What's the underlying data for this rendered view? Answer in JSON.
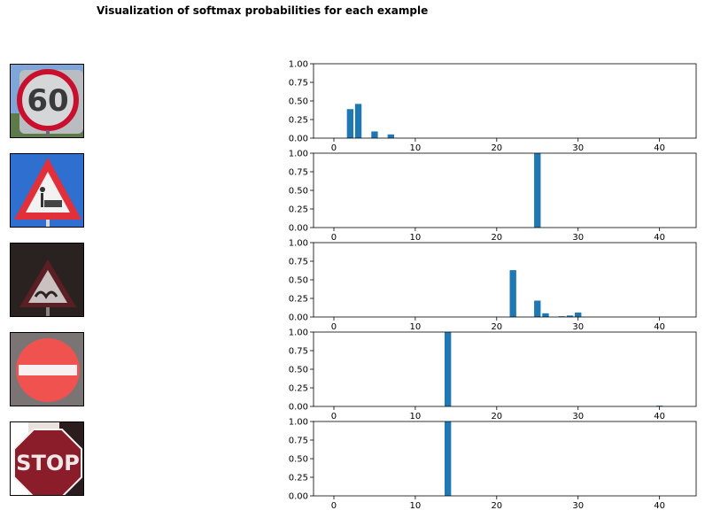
{
  "title": "Visualization of softmax probabilities for each example",
  "bar_color": "#1f77b4",
  "images": [
    {
      "sign": "60",
      "icon": "speed-limit-60-sign"
    },
    {
      "sign": "",
      "icon": "road-work-sign"
    },
    {
      "sign": "",
      "icon": "bumpy-road-sign"
    },
    {
      "sign": "",
      "icon": "no-entry-sign"
    },
    {
      "sign": "STOP",
      "icon": "stop-sign"
    }
  ],
  "chart_data": [
    {
      "type": "bar",
      "title": "",
      "xlabel": "",
      "ylabel": "",
      "x": [
        2,
        3,
        5,
        7
      ],
      "values": [
        0.39,
        0.46,
        0.09,
        0.05
      ],
      "xlim": [
        -2.5,
        44.5
      ],
      "ylim": [
        0,
        1
      ],
      "xticks": [
        "0",
        "10",
        "20",
        "30",
        "40"
      ],
      "yticks": [
        "0.00",
        "0.25",
        "0.50",
        "0.75",
        "1.00"
      ]
    },
    {
      "type": "bar",
      "title": "",
      "xlabel": "",
      "ylabel": "",
      "x": [
        25
      ],
      "values": [
        1.0
      ],
      "xlim": [
        -2.5,
        44.5
      ],
      "ylim": [
        0,
        1
      ],
      "xticks": [
        "0",
        "10",
        "20",
        "30",
        "40"
      ],
      "yticks": [
        "0.00",
        "0.25",
        "0.50",
        "0.75",
        "1.00"
      ]
    },
    {
      "type": "bar",
      "title": "",
      "xlabel": "",
      "ylabel": "",
      "x": [
        22,
        25,
        26,
        28,
        29,
        30
      ],
      "values": [
        0.63,
        0.22,
        0.05,
        0.01,
        0.02,
        0.06
      ],
      "xlim": [
        -2.5,
        44.5
      ],
      "ylim": [
        0,
        1
      ],
      "xticks": [
        "0",
        "10",
        "20",
        "30",
        "40"
      ],
      "yticks": [
        "0.00",
        "0.25",
        "0.50",
        "0.75",
        "1.00"
      ]
    },
    {
      "type": "bar",
      "title": "",
      "xlabel": "",
      "ylabel": "",
      "x": [
        14,
        40
      ],
      "values": [
        1.0,
        0.01
      ],
      "xlim": [
        -2.5,
        44.5
      ],
      "ylim": [
        0,
        1
      ],
      "xticks": [
        "0",
        "10",
        "20",
        "30",
        "40"
      ],
      "yticks": [
        "0.00",
        "0.25",
        "0.50",
        "0.75",
        "1.00"
      ]
    },
    {
      "type": "bar",
      "title": "",
      "xlabel": "",
      "ylabel": "",
      "x": [
        14
      ],
      "values": [
        1.0
      ],
      "xlim": [
        -2.5,
        44.5
      ],
      "ylim": [
        0,
        1
      ],
      "xticks": [
        "0",
        "10",
        "20",
        "30",
        "40"
      ],
      "yticks": [
        "0.00",
        "0.25",
        "0.50",
        "0.75",
        "1.00"
      ]
    }
  ]
}
